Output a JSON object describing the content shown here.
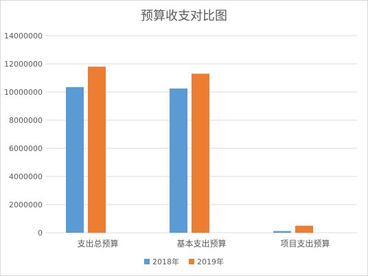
{
  "chart_data": {
    "type": "bar",
    "title": "预算收支对比图",
    "categories": [
      "支出总预算",
      "基本支出预算",
      "项目支出预算"
    ],
    "series": [
      {
        "name": "2018年",
        "color": "#5b9bd5",
        "values": [
          10350000,
          10250000,
          120000
        ]
      },
      {
        "name": "2019年",
        "color": "#ed7d31",
        "values": [
          11800000,
          11300000,
          500000
        ]
      }
    ],
    "y_ticks": [
      "0",
      "2000000",
      "4000000",
      "6000000",
      "8000000",
      "10000000",
      "12000000",
      "14000000"
    ],
    "ylim": [
      0,
      14000000
    ],
    "grid": true,
    "legend_position": "bottom"
  }
}
